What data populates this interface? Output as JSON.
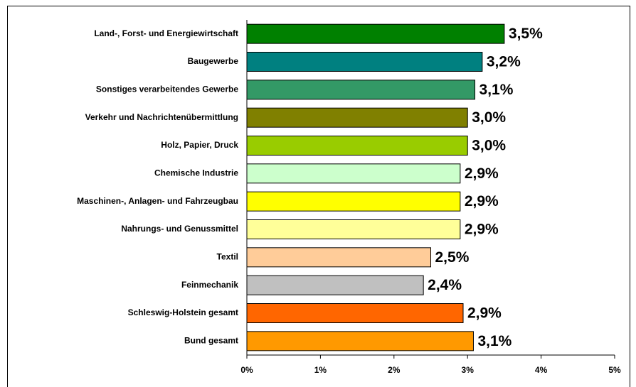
{
  "chart_data": {
    "type": "barh",
    "categories": [
      "Land-, Forst- und Energiewirtschaft",
      "Baugewerbe",
      "Sonstiges verarbeitendes Gewerbe",
      "Verkehr und Nachrichtenübermittlung",
      "Holz, Papier, Druck",
      "Chemische Industrie",
      "Maschinen-, Anlagen- und Fahrzeugbau",
      "Nahrungs- und Genussmittel",
      "Textil",
      "Feinmechanik",
      "Schleswig-Holstein gesamt",
      "Bund gesamt"
    ],
    "values": [
      3.5,
      3.2,
      3.1,
      3.0,
      3.0,
      2.9,
      2.9,
      2.9,
      2.5,
      2.4,
      2.94,
      3.08
    ],
    "value_labels": [
      "3,5%",
      "3,2%",
      "3,1%",
      "3,0%",
      "3,0%",
      "2,9%",
      "2,9%",
      "2,9%",
      "2,5%",
      "2,4%",
      "2,9%",
      "3,1%"
    ],
    "colors": [
      "#008000",
      "#008080",
      "#339966",
      "#808000",
      "#99cc00",
      "#ccffcc",
      "#ffff00",
      "#ffff99",
      "#ffcc99",
      "#c0c0c0",
      "#ff6600",
      "#ff9900"
    ],
    "xlim": [
      0,
      5
    ],
    "xticks": [
      {
        "value": 0,
        "label": "0%"
      },
      {
        "value": 1,
        "label": "1%"
      },
      {
        "value": 2,
        "label": "2%"
      },
      {
        "value": 3,
        "label": "3%"
      },
      {
        "value": 4,
        "label": "4%"
      },
      {
        "value": 5,
        "label": "5%"
      }
    ]
  }
}
